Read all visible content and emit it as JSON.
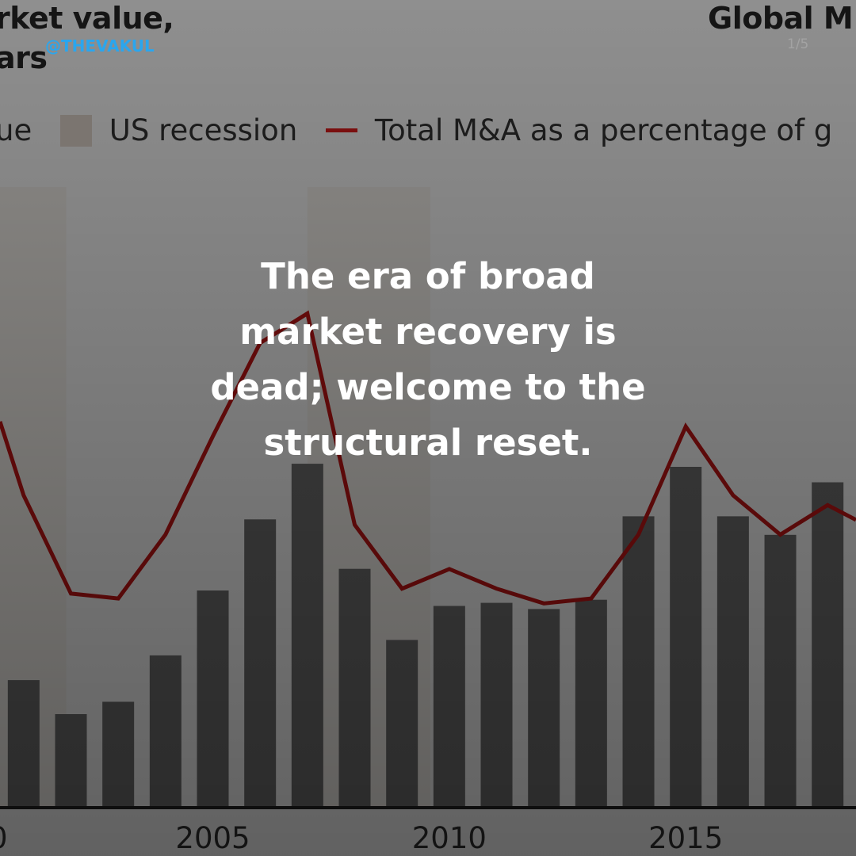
{
  "header": {
    "title_line_1": "rket value,",
    "title_line_2": "ars",
    "right_title": "Global M",
    "handle": "@THEVAKUL",
    "page_indicator": "1/5"
  },
  "overlay": {
    "headline": "The era of broad market recovery is dead; welcome to the structural reset."
  },
  "colors": {
    "background": "#8f8f8f",
    "bar": "#3f3f3f",
    "recession": "#8a8782",
    "line": "#6f0c0c",
    "axis": "#141414",
    "handle": "#2aa6ee"
  },
  "chart_data": {
    "type": "bar",
    "title": "Global M&A market value",
    "xlabel": "",
    "ylabel": "",
    "legend": {
      "position": "top",
      "items": [
        {
          "label": "ue",
          "kind": "bar"
        },
        {
          "label": "US recession",
          "kind": "swatch"
        },
        {
          "label": "Total M&A as a percentage of g",
          "kind": "line"
        }
      ]
    },
    "xlim": [
      2000.5,
      2018.6
    ],
    "x_ticks": [
      2005,
      2010,
      2015
    ],
    "x_tick_labels": [
      "2005",
      "2010",
      "2015"
    ],
    "recessions": [
      {
        "start": 2000.5,
        "end": 2001.9
      },
      {
        "start": 2007.0,
        "end": 2009.6
      }
    ],
    "bars": {
      "name": "Market value",
      "relative_scale": [
        0,
        100
      ],
      "years": [
        2001,
        2002,
        2003,
        2004,
        2005,
        2006,
        2007,
        2008,
        2009,
        2010,
        2011,
        2012,
        2013,
        2014,
        2015,
        2016,
        2017,
        2018
      ],
      "values": [
        41,
        30,
        34,
        49,
        70,
        93,
        111,
        77,
        54,
        65,
        66,
        64,
        67,
        94,
        110,
        94,
        88,
        105
      ]
    },
    "line": {
      "name": "Total M&A as a percentage of g",
      "relative_scale": [
        0,
        100
      ],
      "points": [
        {
          "x": 2000.5,
          "y": 83
        },
        {
          "x": 2001.0,
          "y": 68
        },
        {
          "x": 2002.0,
          "y": 48
        },
        {
          "x": 2003.0,
          "y": 47
        },
        {
          "x": 2004.0,
          "y": 60
        },
        {
          "x": 2005.0,
          "y": 80
        },
        {
          "x": 2006.0,
          "y": 99
        },
        {
          "x": 2007.0,
          "y": 105
        },
        {
          "x": 2008.0,
          "y": 62
        },
        {
          "x": 2009.0,
          "y": 49
        },
        {
          "x": 2010.0,
          "y": 53
        },
        {
          "x": 2011.0,
          "y": 49
        },
        {
          "x": 2012.0,
          "y": 46
        },
        {
          "x": 2013.0,
          "y": 47
        },
        {
          "x": 2014.0,
          "y": 60
        },
        {
          "x": 2015.0,
          "y": 82
        },
        {
          "x": 2016.0,
          "y": 68
        },
        {
          "x": 2017.0,
          "y": 60
        },
        {
          "x": 2018.0,
          "y": 66
        },
        {
          "x": 2018.6,
          "y": 63
        }
      ]
    }
  }
}
